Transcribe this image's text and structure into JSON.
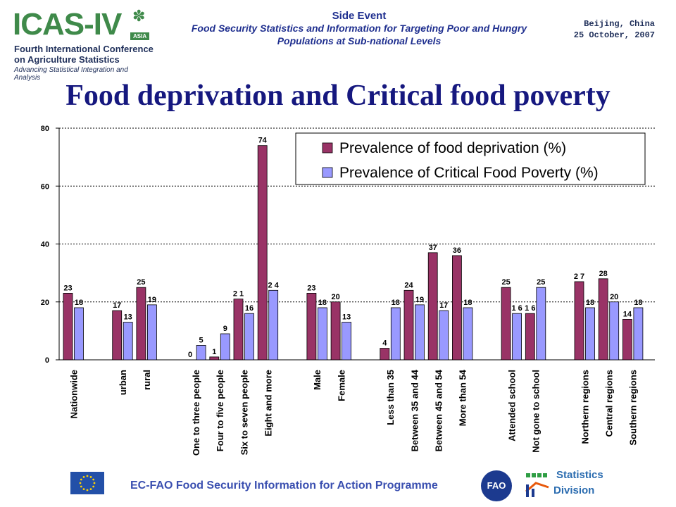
{
  "header": {
    "logo": {
      "mark": "ICAS-IV",
      "badge": "ASIA",
      "line1": "Fourth International Conference",
      "line2": "on Agriculture Statistics",
      "tagline": "Advancing Statistical Integration and Analysis"
    },
    "side_event": {
      "title": "Side Event",
      "subtitle_line1": "Food Security Statistics and Information for Targeting Poor and Hungry",
      "subtitle_line2": "Populations at Sub-national Levels"
    },
    "location": "Beijing, China",
    "date": "25 October, 2007"
  },
  "slide_title": "Food deprivation and Critical food poverty",
  "chart_data": {
    "type": "bar",
    "categories": [
      "Nationwide",
      "urban",
      "rural",
      "One to three people",
      "Four to five people",
      "Six to seven people",
      "Eight and more",
      "Male",
      "Female",
      "Less than 35",
      "Between 35 and 44",
      "Between 45 and 54",
      "More than 54",
      "Attended school",
      "Not gone to school",
      "Northern regions",
      "Central regions",
      "Southern regions"
    ],
    "groups": [
      [
        0
      ],
      [
        1,
        2
      ],
      [
        3,
        4,
        5,
        6
      ],
      [
        7,
        8
      ],
      [
        9,
        10,
        11,
        12
      ],
      [
        13,
        14
      ],
      [
        15,
        16,
        17
      ]
    ],
    "series": [
      {
        "name": "Prevalence of food deprivation (%)",
        "color": "#993366",
        "values": [
          23,
          17,
          25,
          0,
          1,
          21,
          74,
          23,
          20,
          4,
          24,
          37,
          36,
          25,
          16,
          27,
          28,
          14
        ],
        "labels": [
          "23",
          "17",
          "25",
          "0",
          "1",
          "2 1",
          "74",
          "23",
          "20",
          "4",
          "24",
          "37",
          "36",
          "25",
          "1 6",
          "2 7",
          "28",
          "14"
        ]
      },
      {
        "name": "Prevalence of Critical Food Poverty (%)",
        "color": "#9999ff",
        "values": [
          18,
          13,
          19,
          5,
          9,
          16,
          24,
          18,
          13,
          18,
          19,
          17,
          18,
          16,
          25,
          18,
          20,
          18
        ],
        "labels": [
          "18",
          "13",
          "19",
          "5",
          "9",
          "16",
          "2 4",
          "18",
          "13",
          "18",
          "19",
          "17",
          "18",
          "1 6",
          "25",
          "18",
          "20",
          "18"
        ]
      }
    ],
    "yticks": [
      "0",
      "20",
      "40",
      "60",
      "80"
    ],
    "ylim": [
      0,
      80
    ],
    "grid": "horizontal dotted",
    "legend": "top-right"
  },
  "footer": {
    "programme": "EC-FAO Food Security Information for Action Programme",
    "fao_logo": "FAO",
    "stats_line1": "Statistics",
    "stats_line2": "Division",
    "eu_flag_icon": "eu-flag-icon"
  }
}
